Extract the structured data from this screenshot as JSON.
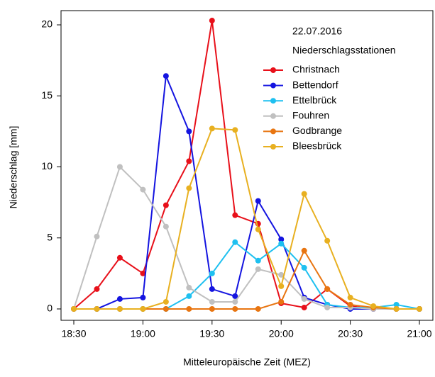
{
  "chart_data": {
    "type": "line",
    "x_label": "Mitteleuropäische Zeit (MEZ)",
    "y_label": "Niederschlag [mm]",
    "legend_title": [
      "22.07.2016",
      "Niederschlagsstationen"
    ],
    "legend_position": "top-right",
    "categories": [
      "18:30",
      null,
      null,
      "19:00",
      null,
      null,
      "19:30",
      null,
      null,
      "20:00",
      null,
      null,
      "20:30",
      null,
      null,
      "21:00"
    ],
    "ylim": [
      -0.8,
      21
    ],
    "yticks": [
      0,
      5,
      10,
      15,
      20
    ],
    "series": [
      {
        "name": "Christnach",
        "color": "#e8101a",
        "values": [
          0,
          1.4,
          3.6,
          2.5,
          7.3,
          10.4,
          20.3,
          6.6,
          6.0,
          0.4,
          0.1,
          1.4,
          0.2,
          0,
          0,
          0
        ]
      },
      {
        "name": "Bettendorf",
        "color": "#1414e0",
        "values": [
          0,
          0,
          0.7,
          0.8,
          16.4,
          12.5,
          1.4,
          0.9,
          7.6,
          4.9,
          0.8,
          0.3,
          0,
          0,
          0,
          0
        ]
      },
      {
        "name": "Ettelbrück",
        "color": "#1ec0f0",
        "values": [
          0,
          0,
          0,
          0,
          0,
          0.9,
          2.5,
          4.7,
          3.4,
          4.6,
          2.9,
          0.3,
          0.1,
          0.1,
          0.3,
          0
        ]
      },
      {
        "name": "Fouhren",
        "color": "#c0c0c0",
        "values": [
          0,
          5.1,
          10.0,
          8.4,
          5.8,
          1.5,
          0.5,
          0.5,
          2.8,
          2.4,
          0.7,
          0.1,
          0.1,
          0,
          0,
          0
        ]
      },
      {
        "name": "Godbrange",
        "color": "#e87511",
        "values": [
          0,
          0,
          0,
          0,
          0,
          0,
          0,
          0,
          0,
          0.5,
          4.1,
          1.4,
          0.3,
          0.1,
          0,
          0
        ]
      },
      {
        "name": "Bleesbrück",
        "color": "#e8b020",
        "values": [
          0,
          0,
          0,
          0,
          0.5,
          8.5,
          12.7,
          12.6,
          5.6,
          1.6,
          8.1,
          4.8,
          0.8,
          0.2,
          0,
          0
        ]
      }
    ]
  }
}
